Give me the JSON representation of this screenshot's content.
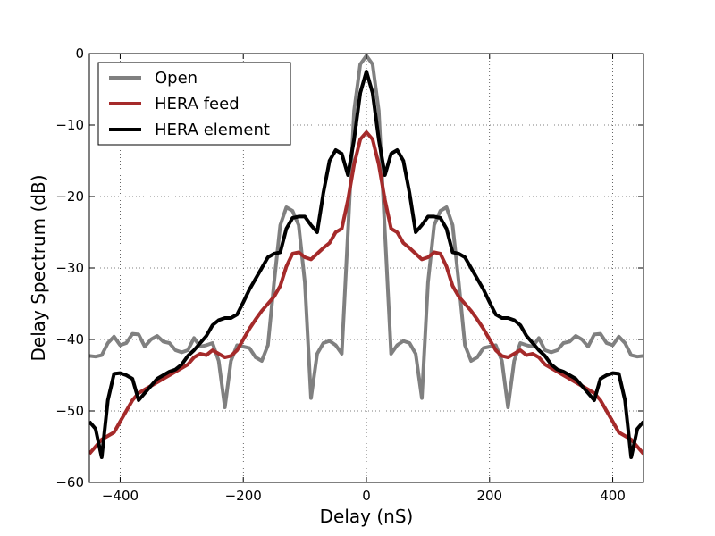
{
  "chart_data": {
    "type": "line",
    "title": "",
    "xlabel": "Delay (nS)",
    "ylabel": "Delay Spectrum (dB)",
    "xlim": [
      -450,
      450
    ],
    "ylim": [
      -60,
      0
    ],
    "xticks": [
      -400,
      -200,
      0,
      200,
      400
    ],
    "yticks": [
      -60,
      -50,
      -40,
      -30,
      -20,
      -10,
      0
    ],
    "xtick_labels": [
      "−400",
      "−200",
      "0",
      "200",
      "400"
    ],
    "ytick_labels": [
      "−60",
      "−50",
      "−40",
      "−30",
      "−20",
      "−10",
      "0"
    ],
    "grid": true,
    "legend_position": "top-left",
    "series": [
      {
        "name": "Open",
        "color": "#808080",
        "x": [
          0,
          10,
          20,
          30,
          40,
          50,
          60,
          70,
          80,
          90,
          100,
          110,
          120,
          130,
          140,
          150,
          160,
          170,
          180,
          190,
          200,
          210,
          220,
          230,
          240,
          250,
          260,
          270,
          280,
          290,
          300,
          310,
          320,
          330,
          340,
          350,
          360,
          370,
          380,
          390,
          400,
          410,
          420,
          430,
          440,
          450
        ],
        "y": [
          -0.3,
          -1.5,
          -8,
          -25,
          -42,
          -40.8,
          -40.2,
          -40.5,
          -42,
          -48.2,
          -32,
          -24,
          -22,
          -21.5,
          -24,
          -32,
          -40.8,
          -43,
          -42.5,
          -41.2,
          -41,
          -40.8,
          -43,
          -49.5,
          -43,
          -40.5,
          -40.8,
          -41,
          -39.8,
          -41.5,
          -41.8,
          -41.5,
          -40.5,
          -40.3,
          -39.5,
          -40,
          -41,
          -39.3,
          -39.2,
          -40.5,
          -40.8,
          -39.6,
          -40.5,
          -42.2,
          -42.4,
          -42.3
        ]
      },
      {
        "name": "HERA feed",
        "color": "#a52a2a",
        "x": [
          0,
          10,
          20,
          30,
          40,
          50,
          60,
          70,
          80,
          90,
          100,
          110,
          120,
          130,
          140,
          150,
          160,
          170,
          180,
          190,
          200,
          210,
          220,
          230,
          240,
          250,
          260,
          270,
          280,
          290,
          300,
          310,
          320,
          330,
          340,
          350,
          360,
          370,
          380,
          390,
          400,
          410,
          420,
          430,
          440,
          450
        ],
        "y": [
          -11,
          -12,
          -15.5,
          -20.5,
          -24.5,
          -25,
          -26.5,
          -27.2,
          -28,
          -28.8,
          -28.5,
          -27.8,
          -28,
          -29.8,
          -32.5,
          -34,
          -35,
          -36,
          -37.2,
          -38.5,
          -40,
          -41.5,
          -42.3,
          -42.5,
          -42,
          -41.5,
          -42.2,
          -42,
          -42.5,
          -43.5,
          -44,
          -44.5,
          -45,
          -45.5,
          -46,
          -46.5,
          -47,
          -47.5,
          -48.5,
          -50,
          -51.5,
          -53,
          -53.5,
          -54,
          -55,
          -56
        ]
      },
      {
        "name": "HERA element",
        "color": "#000000",
        "x": [
          0,
          10,
          20,
          30,
          40,
          50,
          60,
          70,
          80,
          90,
          100,
          110,
          120,
          130,
          140,
          150,
          160,
          170,
          180,
          190,
          200,
          210,
          220,
          230,
          240,
          250,
          260,
          270,
          280,
          290,
          300,
          310,
          320,
          330,
          340,
          350,
          360,
          370,
          380,
          390,
          400,
          410,
          420,
          430,
          440,
          450
        ],
        "y": [
          -2.5,
          -5.5,
          -12,
          -17,
          -14,
          -13.5,
          -15,
          -19.5,
          -25,
          -24,
          -22.8,
          -22.8,
          -23,
          -24.5,
          -27.8,
          -28,
          -28.5,
          -30,
          -31.5,
          -33,
          -34.8,
          -36.5,
          -37,
          -37,
          -37.3,
          -38,
          -39.5,
          -40.5,
          -41.5,
          -42.3,
          -43.5,
          -44.2,
          -44.5,
          -45,
          -45.5,
          -46.5,
          -47.5,
          -48.5,
          -45.5,
          -45,
          -44.7,
          -44.8,
          -48.5,
          -56.5,
          -52.5,
          -51.5
        ]
      }
    ]
  }
}
